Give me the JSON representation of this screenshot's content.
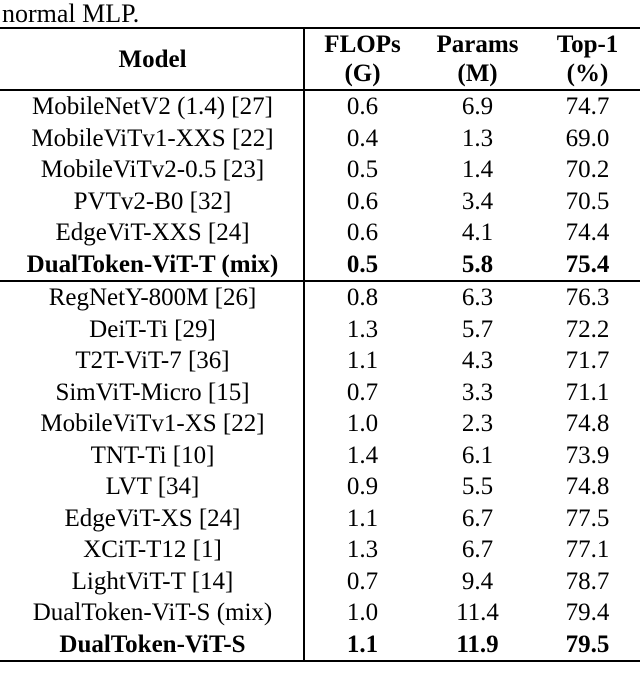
{
  "caption": {
    "text": "normal MLP."
  },
  "table": {
    "header": {
      "model": "Model",
      "flops": {
        "line1": "FLOPs",
        "line2": "(G)"
      },
      "params": {
        "line1": "Params",
        "line2": "(M)"
      },
      "top1": {
        "line1": "Top-1",
        "line2": "(%)"
      }
    },
    "rows": [
      {
        "model": "MobileNetV2 (1.4) [27]",
        "flops": "0.6",
        "params": "6.9",
        "top1": "74.7"
      },
      {
        "model": "MobileViTv1-XXS [22]",
        "flops": "0.4",
        "params": "1.3",
        "top1": "69.0"
      },
      {
        "model": "MobileViTv2-0.5 [23]",
        "flops": "0.5",
        "params": "1.4",
        "top1": "70.2"
      },
      {
        "model": "PVTv2-B0 [32]",
        "flops": "0.6",
        "params": "3.4",
        "top1": "70.5"
      },
      {
        "model": "EdgeViT-XXS [24]",
        "flops": "0.6",
        "params": "4.1",
        "top1": "74.4"
      },
      {
        "model": "DualToken-ViT-T (mix)",
        "flops": "0.5",
        "params": "5.8",
        "top1": "75.4"
      },
      {
        "model": "RegNetY-800M [26]",
        "flops": "0.8",
        "params": "6.3",
        "top1": "76.3"
      },
      {
        "model": "DeiT-Ti [29]",
        "flops": "1.3",
        "params": "5.7",
        "top1": "72.2"
      },
      {
        "model": "T2T-ViT-7 [36]",
        "flops": "1.1",
        "params": "4.3",
        "top1": "71.7"
      },
      {
        "model": "SimViT-Micro [15]",
        "flops": "0.7",
        "params": "3.3",
        "top1": "71.1"
      },
      {
        "model": "MobileViTv1-XS [22]",
        "flops": "1.0",
        "params": "2.3",
        "top1": "74.8"
      },
      {
        "model": "TNT-Ti [10]",
        "flops": "1.4",
        "params": "6.1",
        "top1": "73.9"
      },
      {
        "model": "LVT [34]",
        "flops": "0.9",
        "params": "5.5",
        "top1": "74.8"
      },
      {
        "model": "EdgeViT-XS [24]",
        "flops": "1.1",
        "params": "6.7",
        "top1": "77.5"
      },
      {
        "model": "XCiT-T12 [1]",
        "flops": "1.3",
        "params": "6.7",
        "top1": "77.1"
      },
      {
        "model": "LightViT-T [14]",
        "flops": "0.7",
        "params": "9.4",
        "top1": "78.7"
      },
      {
        "model": "DualToken-ViT-S (mix)",
        "flops": "1.0",
        "params": "11.4",
        "top1": "79.4"
      },
      {
        "model": "DualToken-ViT-S",
        "flops": "1.1",
        "params": "11.9",
        "top1": "79.5"
      }
    ]
  },
  "colors": {
    "text": "#000000",
    "rule": "#000000",
    "background": "#ffffff"
  }
}
